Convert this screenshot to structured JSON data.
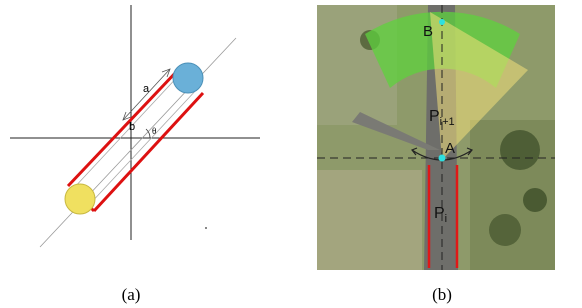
{
  "panel_a": {
    "caption": "(a)",
    "label_a": "a",
    "label_b": "b",
    "label_theta": "θ"
  },
  "panel_b": {
    "caption": "(b)",
    "point_b": "B",
    "point_a": "A",
    "segment_next": {
      "letter": "P",
      "subscript": "i+1"
    },
    "segment_current": {
      "letter": "P",
      "subscript": "i"
    }
  }
}
